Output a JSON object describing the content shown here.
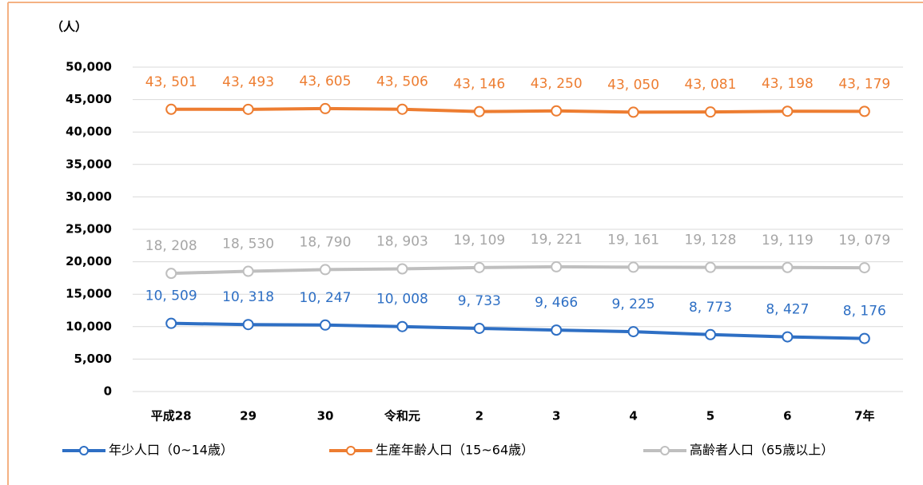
{
  "chart_data": {
    "type": "line",
    "y_label": "（人）",
    "categories": [
      "平成28",
      "29",
      "30",
      "令和元",
      "2",
      "3",
      "4",
      "5",
      "6",
      "7年"
    ],
    "series": [
      {
        "name": "年少人口（0~14歳）",
        "color": "#2e6fc4",
        "values": [
          10509,
          10318,
          10247,
          10008,
          9733,
          9466,
          9225,
          8773,
          8427,
          8176
        ],
        "value_labels": [
          "10, 509",
          "10, 318",
          "10, 247",
          "10, 008",
          "9, 733",
          "9, 466",
          "9, 225",
          "8, 773",
          "8, 427",
          "8, 176"
        ]
      },
      {
        "name": "生産年齢人口（15~64歳）",
        "color": "#ed7d31",
        "values": [
          43501,
          43493,
          43605,
          43506,
          43146,
          43250,
          43050,
          43081,
          43198,
          43179
        ],
        "value_labels": [
          "43, 501",
          "43, 493",
          "43, 605",
          "43, 506",
          "43, 146",
          "43, 250",
          "43, 050",
          "43, 081",
          "43, 198",
          "43, 179"
        ]
      },
      {
        "name": "高齢者人口（65歳以上）",
        "color": "#bfbfbf",
        "values": [
          18208,
          18530,
          18790,
          18903,
          19109,
          19221,
          19161,
          19128,
          19119,
          19079
        ],
        "value_labels": [
          "18, 208",
          "18, 530",
          "18, 790",
          "18, 903",
          "19, 109",
          "19, 221",
          "19, 161",
          "19, 128",
          "19, 119",
          "19, 079"
        ]
      }
    ],
    "ylim": [
      0,
      50000
    ],
    "yticks": [
      0,
      {
        "value": 5000,
        "label": "5,000"
      },
      {
        "value": 10000,
        "label": "10,000"
      },
      {
        "value": 15000,
        "label": "15,000"
      },
      {
        "value": 20000,
        "label": "20,000"
      },
      {
        "value": 25000,
        "label": "25,000"
      },
      {
        "value": 30000,
        "label": "30,000"
      },
      {
        "value": 35000,
        "label": "35,000"
      },
      {
        "value": 40000,
        "label": "40,000"
      },
      {
        "value": 45000,
        "label": "45,000"
      },
      {
        "value": 50000,
        "label": "50,000"
      }
    ],
    "grid": true,
    "legend": "bottom"
  }
}
